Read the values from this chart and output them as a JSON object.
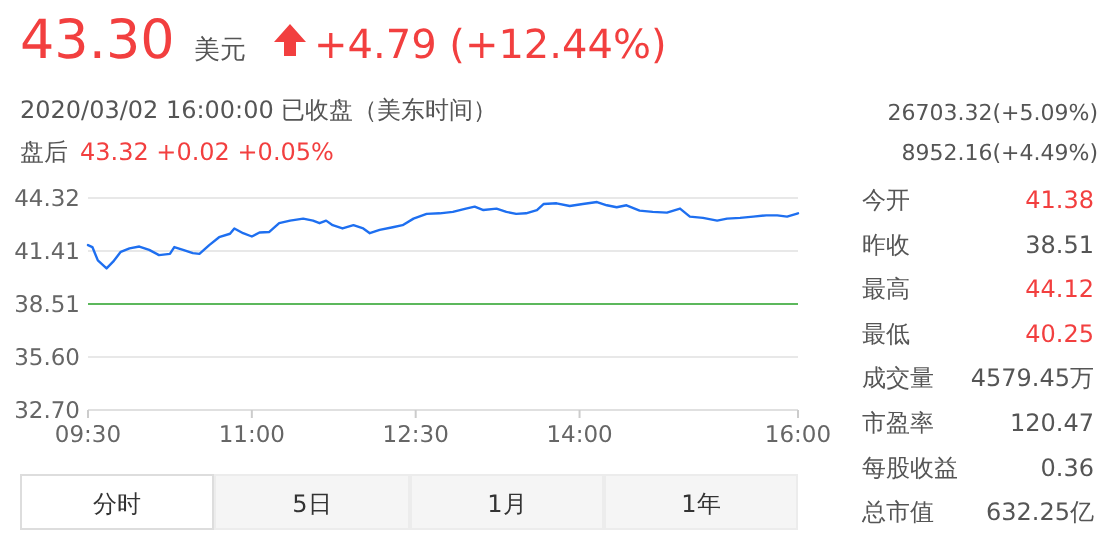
{
  "chart_data": {
    "type": "line",
    "title": "43.30",
    "annotations": [
      "美元",
      "+4.79 (+12.44%)",
      "2020/03/02 16:00:00 已收盘（美东时间）",
      "盘后",
      "43.32  +0.02  +0.05%",
      "26703.32(+5.09%)",
      "8952.16(+4.49%)",
      "今开",
      "41.38",
      "昨收",
      "38.51",
      "最高",
      "44.12",
      "最低",
      "40.25",
      "成交量",
      "4579.45万",
      "市盈率",
      "120.47",
      "每股收益",
      "0.36",
      "总市值",
      "632.25亿",
      "分时",
      "5日",
      "1月",
      "1年"
    ],
    "x": [
      9.5,
      9.54,
      9.59,
      9.67,
      9.73,
      9.8,
      9.88,
      9.97,
      10.06,
      10.15,
      10.25,
      10.29,
      10.37,
      10.46,
      10.52,
      10.61,
      10.7,
      10.8,
      10.84,
      10.92,
      11.0,
      11.07,
      11.16,
      11.25,
      11.35,
      11.47,
      11.56,
      11.62,
      11.68,
      11.74,
      11.83,
      11.93,
      12.02,
      12.08,
      12.17,
      12.29,
      12.38,
      12.48,
      12.6,
      12.72,
      12.84,
      12.96,
      13.04,
      13.12,
      13.24,
      13.33,
      13.42,
      13.51,
      13.61,
      13.67,
      13.79,
      13.91,
      14.03,
      14.16,
      14.25,
      14.34,
      14.43,
      14.55,
      14.67,
      14.8,
      14.92,
      15.01,
      15.13,
      15.26,
      15.35,
      15.47,
      15.59,
      15.71,
      15.81,
      15.9,
      16.0
    ],
    "series": [
      {
        "color": "#1e6ff0",
        "values": [
          41.74,
          41.63,
          40.9,
          40.46,
          40.83,
          41.37,
          41.56,
          41.66,
          41.48,
          41.19,
          41.26,
          41.63,
          41.48,
          41.3,
          41.26,
          41.74,
          42.17,
          42.36,
          42.65,
          42.39,
          42.21,
          42.43,
          42.46,
          42.94,
          43.08,
          43.19,
          43.08,
          42.94,
          43.08,
          42.83,
          42.65,
          42.83,
          42.65,
          42.39,
          42.57,
          42.72,
          42.83,
          43.19,
          43.45,
          43.48,
          43.56,
          43.74,
          43.85,
          43.66,
          43.74,
          43.56,
          43.45,
          43.48,
          43.66,
          43.99,
          44.03,
          43.88,
          43.99,
          44.1,
          43.92,
          43.81,
          43.92,
          43.63,
          43.56,
          43.52,
          43.74,
          43.3,
          43.23,
          43.08,
          43.19,
          43.23,
          43.3,
          43.37,
          43.37,
          43.3,
          43.48
        ]
      }
    ],
    "xlim": [
      9.5,
      16
    ],
    "ylim": [
      32.7,
      44.32
    ],
    "xticks": [
      {
        "value": 9.5,
        "label": "09:30"
      },
      {
        "value": 11,
        "label": "11:00"
      },
      {
        "value": 12.5,
        "label": "12:30"
      },
      {
        "value": 14,
        "label": "14:00"
      },
      {
        "value": 16,
        "label": "16:00"
      }
    ],
    "yticks": [
      {
        "value": 32.7,
        "label": "32.70"
      },
      {
        "value": 35.6,
        "label": "35.60"
      },
      {
        "value": 38.51,
        "label": "38.51"
      },
      {
        "value": 41.41,
        "label": "41.41"
      },
      {
        "value": 44.32,
        "label": "44.32"
      }
    ],
    "ref_lines": [
      {
        "axis": "y",
        "value": 38.51,
        "color": "#5cb85c"
      }
    ],
    "grid": "y",
    "marker": "none",
    "line_style": "solid"
  }
}
